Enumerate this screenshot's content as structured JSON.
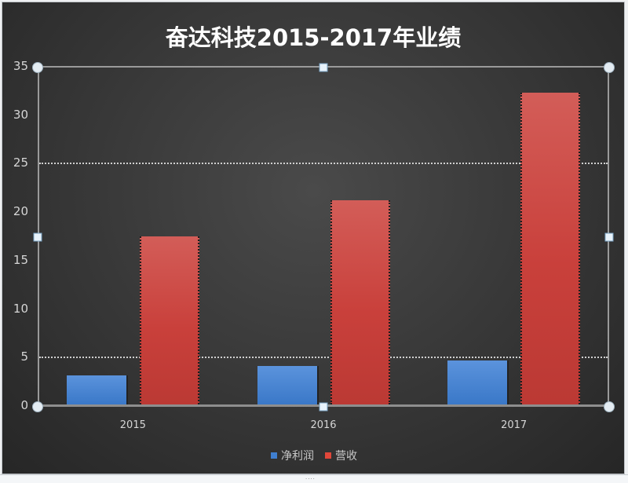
{
  "chart_data": {
    "type": "bar",
    "title": "奋达科技2015-2017年业绩",
    "categories": [
      "2015",
      "2016",
      "2017"
    ],
    "series": [
      {
        "name": "净利润",
        "color": "#3f7fd0",
        "values": [
          3.0,
          4.0,
          4.5
        ]
      },
      {
        "name": "营收",
        "color": "#c94440",
        "values": [
          17.3,
          21.1,
          32.2
        ]
      }
    ],
    "xlabel": "",
    "ylabel": "",
    "ylim": [
      0,
      35
    ],
    "yticks": [
      "0",
      "5",
      "10",
      "15",
      "20",
      "25",
      "30",
      "35"
    ],
    "gridlines": [
      5,
      25
    ],
    "legend_position": "bottom"
  },
  "legend": {
    "items": [
      {
        "label": "净利润",
        "color": "#3f7fd0"
      },
      {
        "label": "营收",
        "color": "#e0473a"
      }
    ]
  },
  "footer": {
    "grip": "····"
  }
}
